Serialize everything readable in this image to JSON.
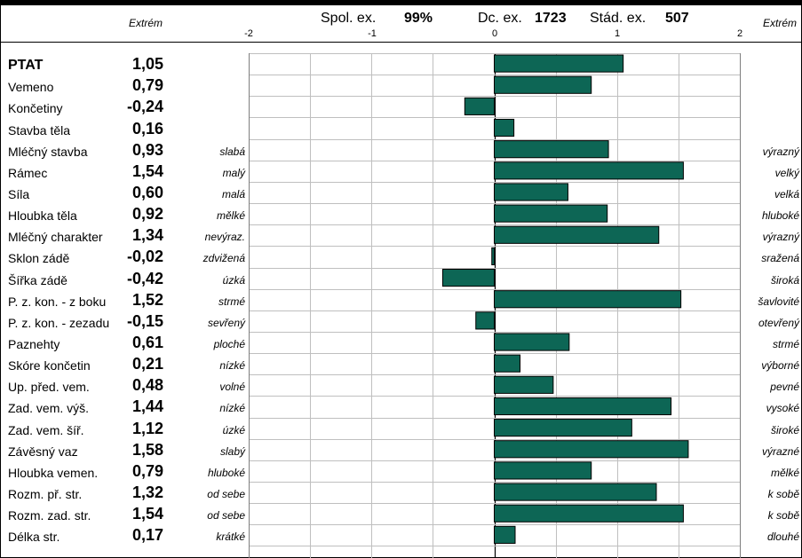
{
  "header": {
    "spol_label": "Spol. ex.",
    "spol_value": "99%",
    "dc_label": "Dc. ex.",
    "dc_value": "1723",
    "stad_label": "Stád. ex.",
    "stad_value": "507",
    "extrem_left": "Extrém",
    "extrem_right": "Extrém"
  },
  "chart_data": {
    "type": "bar",
    "orientation": "horizontal",
    "xlim": [
      -2,
      2
    ],
    "ticks": [
      "-2",
      "-1",
      "0",
      "1",
      "2"
    ],
    "bar_color": "#0d6655",
    "grid": true,
    "rows": [
      {
        "label": "PTAT",
        "value": 1.05,
        "display": "1,05",
        "low": "",
        "high": "",
        "bold": true
      },
      {
        "label": "Vemeno",
        "value": 0.79,
        "display": "0,79",
        "low": "",
        "high": ""
      },
      {
        "label": "Končetiny",
        "value": -0.24,
        "display": "-0,24",
        "low": "",
        "high": ""
      },
      {
        "label": "Stavba těla",
        "value": 0.16,
        "display": "0,16",
        "low": "",
        "high": ""
      },
      {
        "label": "Mléčný stavba",
        "value": 0.93,
        "display": "0,93",
        "low": "slabá",
        "high": "výrazný"
      },
      {
        "label": "Rámec",
        "value": 1.54,
        "display": "1,54",
        "low": "malý",
        "high": "velký"
      },
      {
        "label": "Síla",
        "value": 0.6,
        "display": "0,60",
        "low": "malá",
        "high": "velká"
      },
      {
        "label": "Hloubka těla",
        "value": 0.92,
        "display": "0,92",
        "low": "mělké",
        "high": "hluboké"
      },
      {
        "label": "Mléčný charakter",
        "value": 1.34,
        "display": "1,34",
        "low": "nevýraz.",
        "high": "výrazný"
      },
      {
        "label": "Sklon zádě",
        "value": -0.02,
        "display": "-0,02",
        "low": "zdvižená",
        "high": "sražená"
      },
      {
        "label": "Šířka zádě",
        "value": -0.42,
        "display": "-0,42",
        "low": "úzká",
        "high": "široká"
      },
      {
        "label": "P. z. kon. - z boku",
        "value": 1.52,
        "display": "1,52",
        "low": "strmé",
        "high": "šavlovité"
      },
      {
        "label": "P. z. kon. - zezadu",
        "value": -0.15,
        "display": "-0,15",
        "low": "sevřený",
        "high": "otevřený"
      },
      {
        "label": "Paznehty",
        "value": 0.61,
        "display": "0,61",
        "low": "ploché",
        "high": "strmé"
      },
      {
        "label": "Skóre končetin",
        "value": 0.21,
        "display": "0,21",
        "low": "nízké",
        "high": "výborné"
      },
      {
        "label": "Up. před. vem.",
        "value": 0.48,
        "display": "0,48",
        "low": "volné",
        "high": "pevné"
      },
      {
        "label": "Zad. vem. výš.",
        "value": 1.44,
        "display": "1,44",
        "low": "nízké",
        "high": "vysoké"
      },
      {
        "label": "Zad. vem. šíř.",
        "value": 1.12,
        "display": "1,12",
        "low": "úzké",
        "high": "široké"
      },
      {
        "label": "Závěsný vaz",
        "value": 1.58,
        "display": "1,58",
        "low": "slabý",
        "high": "výrazné"
      },
      {
        "label": "Hloubka vemen.",
        "value": 0.79,
        "display": "0,79",
        "low": "hluboké",
        "high": "mělké"
      },
      {
        "label": "Rozm. př. str.",
        "value": 1.32,
        "display": "1,32",
        "low": "od sebe",
        "high": "k sobě"
      },
      {
        "label": "Rozm. zad. str.",
        "value": 1.54,
        "display": "1,54",
        "low": "od sebe",
        "high": "k sobě"
      },
      {
        "label": "Délka str.",
        "value": 0.17,
        "display": "0,17",
        "low": "krátké",
        "high": "dlouhé"
      }
    ]
  }
}
